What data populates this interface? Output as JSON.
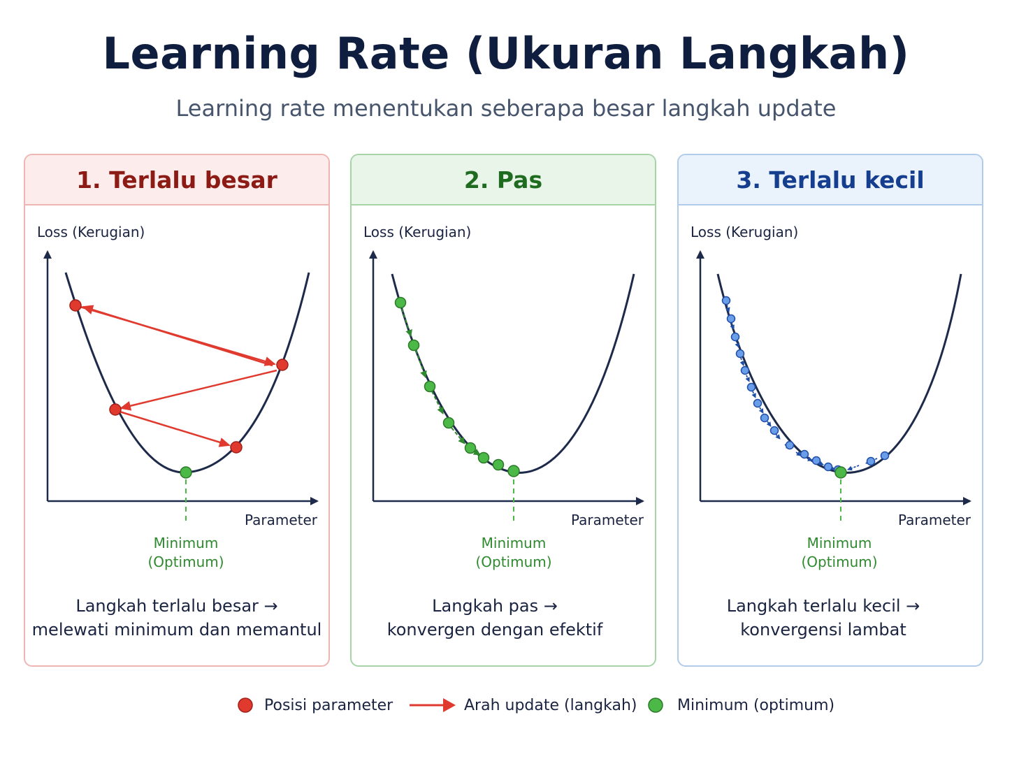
{
  "title": "Learning Rate (Ukuran Langkah)",
  "subtitle": "Learning rate menentukan seberapa besar langkah update",
  "colors": {
    "red": "#e03a2f",
    "green": "#4cb848",
    "blue": "#5b8fe0",
    "curve": "#1e2a4a"
  },
  "panels": [
    {
      "header": "1. Terlalu besar",
      "ylabel": "Loss (Kerugian)",
      "xlabel": "Parameter",
      "min_line1": "Minimum",
      "min_line2": "(Optimum)",
      "desc_line1": "Langkah terlalu besar →",
      "desc_line2": "melewati minimum dan memantul",
      "steps": 4
    },
    {
      "header": "2. Pas",
      "ylabel": "Loss (Kerugian)",
      "xlabel": "Parameter",
      "min_line1": "Minimum",
      "min_line2": "(Optimum)",
      "desc_line1": "Langkah pas →",
      "desc_line2": "konvergen dengan efektif",
      "steps": 8
    },
    {
      "header": "3. Terlalu kecil",
      "ylabel": "Loss (Kerugian)",
      "xlabel": "Parameter",
      "min_line1": "Minimum",
      "min_line2": "(Optimum)",
      "desc_line1": "Langkah terlalu kecil →",
      "desc_line2": "konvergensi lambat",
      "steps": 17
    }
  ],
  "legend": [
    {
      "label": "Posisi parameter",
      "icon": "red-dot-icon"
    },
    {
      "label": "Arah update (langkah)",
      "icon": "red-arrow-icon"
    },
    {
      "label": "Minimum (optimum)",
      "icon": "green-dot-icon"
    }
  ]
}
